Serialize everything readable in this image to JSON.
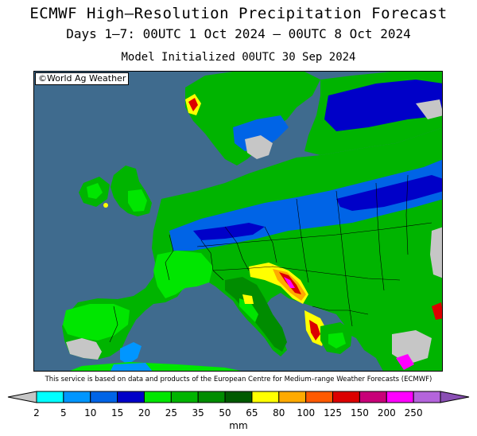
{
  "header": {
    "title": "ECMWF High–Resolution Precipitation Forecast",
    "subtitle": "Days 1–7: 00UTC 1 Oct 2024 – 00UTC 8 Oct 2024",
    "init": "Model Initialized 00UTC 30 Sep 2024"
  },
  "map": {
    "credit": "©World Ag Weather",
    "region": "Europe",
    "colors": {
      "sea": "#3f6b8e",
      "no_precip": "#c6c6c6",
      "border": "#000000"
    }
  },
  "disclaimer": "This service is based on data and products of the European Centre for Medium–range Weather Forecasts (ECMWF)",
  "legend": {
    "units": "mm",
    "labels": [
      "2",
      "5",
      "10",
      "15",
      "20",
      "25",
      "35",
      "50",
      "65",
      "80",
      "100",
      "125",
      "150",
      "200",
      "250"
    ],
    "colors": [
      "#00ffff",
      "#0096ff",
      "#0064e6",
      "#0000c8",
      "#00e600",
      "#00b400",
      "#008c00",
      "#005a00",
      "#ffff00",
      "#ffaa00",
      "#ff5a00",
      "#dc0000",
      "#c80078",
      "#ff00ff",
      "#b464dc"
    ]
  }
}
